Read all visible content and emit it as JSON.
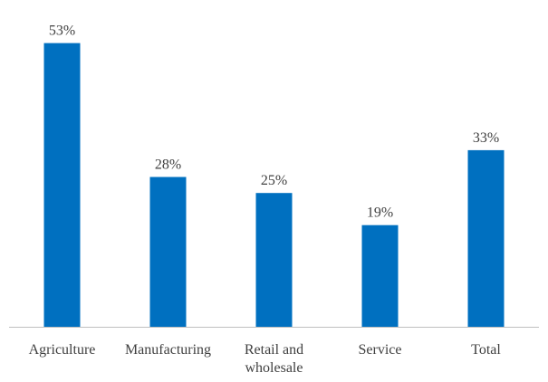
{
  "chart_data": {
    "type": "bar",
    "categories": [
      [
        "Agriculture"
      ],
      [
        "Manufacturing"
      ],
      [
        "Retail and",
        "wholesale"
      ],
      [
        "Service"
      ],
      [
        "Total"
      ]
    ],
    "values": [
      53,
      28,
      25,
      19,
      33
    ],
    "value_labels": [
      "53%",
      "28%",
      "25%",
      "19%",
      "33%"
    ],
    "unit": "%",
    "ylim": [
      0,
      57
    ],
    "title": "",
    "xlabel": "",
    "ylabel": "",
    "grid": false,
    "legend": "none",
    "colors": {
      "bar": "#0070C0",
      "axis": "#BFBFBF",
      "text": "#404040"
    }
  }
}
